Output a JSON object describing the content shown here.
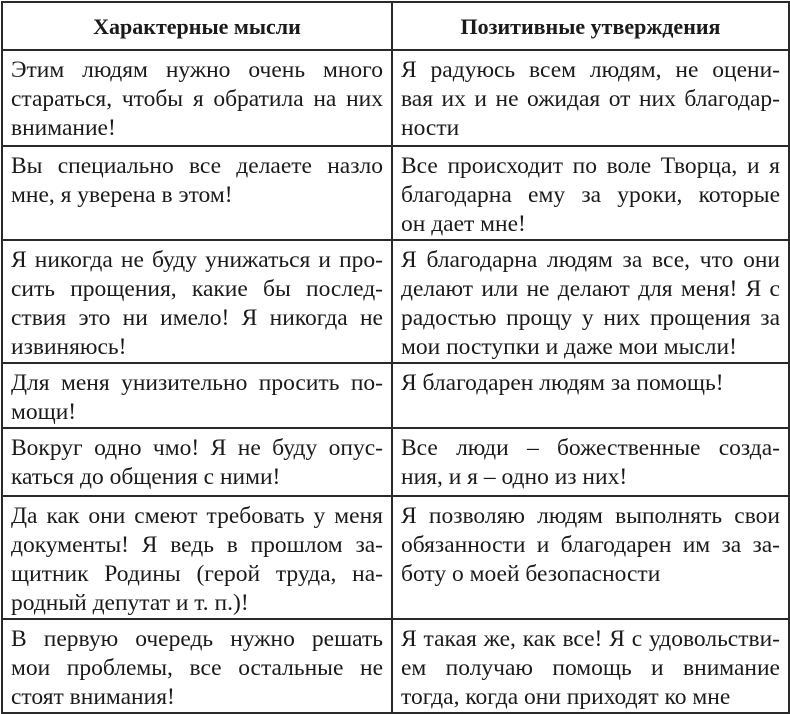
{
  "table": {
    "headers": [
      "Характерные мысли",
      "Позитивные утверждения"
    ],
    "rows": [
      {
        "left": [
          "Этим людям нужно очень много",
          "стараться, чтобы я обратила на них",
          "внимание!"
        ],
        "right": [
          "Я радуюсь всем людям, не оцени-",
          "вая их и не ожидая от них благодар-",
          "ности"
        ]
      },
      {
        "left": [
          "Вы специально все делаете назло",
          "мне, я уверена в этом!"
        ],
        "right": [
          "Все происходит по воле Творца, и я",
          "благодарна ему за уроки, которые",
          "он дает мне!"
        ]
      },
      {
        "left": [
          "Я никогда не буду унижаться и про-",
          "сить прощения, какие бы послед-",
          "ствия это ни имело! Я никогда не",
          "извиняюсь!"
        ],
        "right": [
          "Я благодарна людям за все, что они",
          "делают или не делают для меня! Я с",
          "радостью прощу у них прощения за",
          "мои поступки и даже мои мысли!"
        ]
      },
      {
        "left": [
          "Для меня унизительно просить по-",
          "мощи!"
        ],
        "right": [
          "Я благодарен людям за помощь!"
        ]
      },
      {
        "left": [
          "Вокруг одно чмо! Я не буду опус-",
          "каться до общения с ними!"
        ],
        "right": [
          "Все люди – божественные созда-",
          "ния, и я – одно из них!"
        ]
      },
      {
        "left": [
          "Да как они смеют требовать у меня",
          "документы! Я ведь в прошлом за-",
          "щитник Родины (герой труда, на-",
          "родный депутат и т. п.)!"
        ],
        "right": [
          "Я позволяю людям выполнять свои",
          "обязанности и благодарен им за за-",
          "боту о моей безопасности"
        ]
      },
      {
        "left": [
          "В первую очередь нужно решать",
          "мои проблемы, все остальные не",
          "стоят внимания!"
        ],
        "right": [
          "Я такая же, как все! Я с удовольстви-",
          "ем получаю помощь и внимание",
          "тогда, когда они приходят ко мне"
        ]
      }
    ]
  }
}
